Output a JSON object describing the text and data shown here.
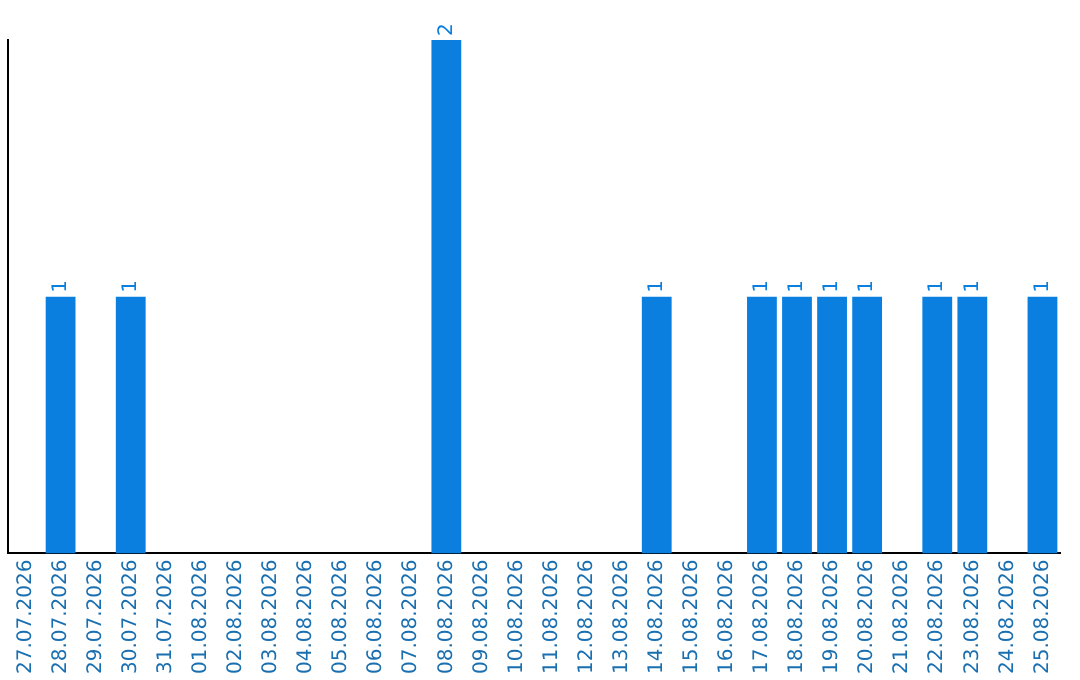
{
  "chart_data": {
    "type": "bar",
    "categories": [
      "27.07.2026",
      "28.07.2026",
      "29.07.2026",
      "30.07.2026",
      "31.07.2026",
      "01.08.2026",
      "02.08.2026",
      "03.08.2026",
      "04.08.2026",
      "05.08.2026",
      "06.08.2026",
      "07.08.2026",
      "08.08.2026",
      "09.08.2026",
      "10.08.2026",
      "11.08.2026",
      "12.08.2026",
      "13.08.2026",
      "14.08.2026",
      "15.08.2026",
      "16.08.2026",
      "17.08.2026",
      "18.08.2026",
      "19.08.2026",
      "20.08.2026",
      "21.08.2026",
      "22.08.2026",
      "23.08.2026",
      "24.08.2026",
      "25.08.2026"
    ],
    "values": [
      0,
      1,
      0,
      1,
      0,
      0,
      0,
      0,
      0,
      0,
      0,
      0,
      2,
      0,
      0,
      0,
      0,
      0,
      1,
      0,
      0,
      1,
      1,
      1,
      1,
      0,
      1,
      1,
      0,
      1
    ],
    "value_labels": [
      null,
      "1",
      null,
      "1",
      null,
      null,
      null,
      null,
      null,
      null,
      null,
      null,
      "2",
      null,
      null,
      null,
      null,
      null,
      "1",
      null,
      null,
      "1",
      "1",
      "1",
      "1",
      null,
      "1",
      "1",
      null,
      "1"
    ],
    "color": "#0a7fe0",
    "ylim": [
      0,
      2
    ],
    "tick_labels": "x",
    "grid": false,
    "legend": false
  }
}
